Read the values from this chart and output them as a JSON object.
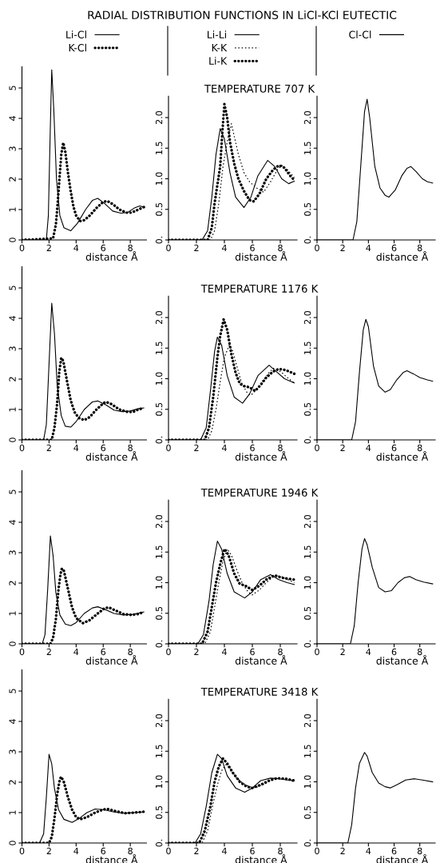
{
  "chart_data": [
    {
      "type": "line",
      "title": "RADIAL DISTRIBUTION FUNCTIONS IN LiCl-KCl EUTECTIC",
      "xlabel": "distance Å",
      "xlim": [
        0,
        9.2
      ],
      "xticks": [
        0,
        2,
        4,
        6,
        8
      ],
      "ylim": [
        0,
        5.7
      ],
      "yticks": [
        0,
        1,
        2,
        3,
        4,
        5
      ],
      "legend": "top",
      "series": [
        {
          "name": "Li-Cl",
          "color": "#000000",
          "x": [
            0,
            1.8,
            1.95,
            2.1,
            2.2,
            2.35,
            2.55,
            2.8,
            3.1,
            3.6,
            4.1,
            4.7,
            5.2,
            5.6,
            6.1,
            6.7,
            7.3,
            7.8,
            8.3,
            8.7,
            9.0
          ],
          "values": [
            0,
            0,
            0.8,
            3.8,
            5.6,
            4.3,
            2.0,
            0.8,
            0.4,
            0.3,
            0.55,
            1.0,
            1.3,
            1.37,
            1.2,
            0.95,
            0.88,
            0.9,
            1.05,
            1.12,
            1.08
          ]
        },
        {
          "name": "K-Cl",
          "line_style": "dotted",
          "color": "#000000",
          "x": [
            0,
            2.3,
            2.5,
            2.6,
            2.7,
            2.8,
            2.9,
            3.05,
            3.2,
            3.4,
            3.6,
            3.8,
            4.0,
            4.3,
            4.6,
            5.0,
            5.5,
            6.0,
            6.3,
            6.7,
            7.2,
            7.7,
            8.1,
            8.5,
            9.0
          ],
          "values": [
            0,
            0.05,
            0.5,
            1.0,
            1.6,
            2.2,
            2.8,
            3.2,
            2.9,
            2.2,
            1.6,
            1.1,
            0.8,
            0.62,
            0.65,
            0.8,
            1.05,
            1.25,
            1.28,
            1.18,
            1.0,
            0.9,
            0.9,
            0.98,
            1.08
          ]
        }
      ]
    },
    {
      "type": "line",
      "title": "TEMPERATURE 707 K",
      "xlabel": "distance Å",
      "xlim": [
        0,
        9.2
      ],
      "xticks": [
        0,
        2,
        4,
        6,
        8
      ],
      "ylim": [
        0,
        2.35
      ],
      "yticks": [
        {
          "value": 0,
          "label": "0."
        },
        0.5,
        {
          "value": 1,
          "label": "1.0"
        },
        1.5,
        {
          "value": 2,
          "label": "2.0"
        }
      ],
      "legend": "top",
      "series": [
        {
          "name": "Li-Li",
          "color": "#000000",
          "x": [
            0,
            2.4,
            2.8,
            3.1,
            3.4,
            3.7,
            4.0,
            4.4,
            4.8,
            5.4,
            5.9,
            6.4,
            7.1,
            7.6,
            8.1,
            8.6,
            9.0
          ],
          "values": [
            0,
            0,
            0.15,
            0.7,
            1.4,
            1.82,
            1.65,
            1.1,
            0.7,
            0.53,
            0.7,
            1.05,
            1.3,
            1.2,
            1.0,
            0.92,
            0.96
          ]
        },
        {
          "name": "K-K",
          "line_style": "dashed",
          "color": "#000000",
          "x": [
            0,
            3.0,
            3.3,
            3.6,
            3.9,
            4.2,
            4.5,
            4.7,
            5.0,
            5.4,
            5.8,
            6.3,
            6.8,
            7.3,
            7.8,
            8.1,
            8.5,
            9.0
          ],
          "values": [
            0,
            0,
            0.15,
            0.6,
            1.2,
            1.6,
            1.9,
            1.7,
            1.4,
            1.1,
            0.95,
            0.85,
            0.78,
            0.95,
            1.15,
            1.22,
            1.15,
            1.02
          ]
        },
        {
          "name": "Li-K",
          "line_style": "dotted",
          "color": "#000000",
          "x": [
            0,
            2.8,
            3.1,
            3.3,
            3.5,
            3.7,
            3.85,
            4.0,
            4.2,
            4.4,
            4.7,
            5.0,
            5.4,
            5.8,
            6.1,
            6.5,
            7.0,
            7.5,
            7.9,
            8.3,
            8.7,
            9.0
          ],
          "values": [
            0,
            0,
            0.2,
            0.6,
            0.9,
            1.2,
            1.75,
            2.22,
            2.0,
            1.6,
            1.25,
            1.0,
            0.8,
            0.65,
            0.63,
            0.75,
            1.0,
            1.15,
            1.22,
            1.18,
            1.05,
            0.98
          ]
        }
      ]
    },
    {
      "type": "line",
      "xlabel": "distance Å",
      "xlim": [
        0,
        9.2
      ],
      "xticks": [
        0,
        2,
        4,
        6,
        8
      ],
      "ylim": [
        0,
        2.35
      ],
      "yticks": [
        {
          "value": 0,
          "label": "0."
        },
        0.5,
        {
          "value": 1,
          "label": "1.0"
        },
        1.5,
        {
          "value": 2,
          "label": "2.0"
        }
      ],
      "legend": "top",
      "series": [
        {
          "name": "Cl-Cl",
          "color": "#000000",
          "x": [
            0,
            2.8,
            3.1,
            3.4,
            3.7,
            3.9,
            4.1,
            4.5,
            4.9,
            5.3,
            5.6,
            6.1,
            6.6,
            7.0,
            7.3,
            7.7,
            8.2,
            8.6,
            9.0
          ],
          "values": [
            0,
            0,
            0.3,
            1.2,
            2.1,
            2.3,
            2.0,
            1.2,
            0.85,
            0.73,
            0.7,
            0.82,
            1.05,
            1.17,
            1.2,
            1.12,
            1.0,
            0.95,
            0.93
          ]
        }
      ]
    },
    {
      "type": "line",
      "xlabel": "distance Å",
      "xlim": [
        0,
        9.2
      ],
      "xticks": [
        0,
        2,
        4,
        6,
        8
      ],
      "ylim": [
        0,
        5.7
      ],
      "yticks": [
        0,
        1,
        2,
        3,
        4,
        5
      ],
      "series": [
        {
          "color": "#000000",
          "x": [
            0,
            1.6,
            1.8,
            2.0,
            2.2,
            2.4,
            2.6,
            2.9,
            3.2,
            3.6,
            4.0,
            4.6,
            5.2,
            5.6,
            6.2,
            6.8,
            7.4,
            8.0,
            8.6,
            9.0
          ],
          "values": [
            0,
            0,
            0.5,
            2.5,
            4.5,
            3.5,
            1.8,
            0.8,
            0.45,
            0.42,
            0.6,
            1.0,
            1.25,
            1.28,
            1.15,
            0.98,
            0.93,
            0.95,
            1.03,
            1.05
          ]
        },
        {
          "line_style": "dotted",
          "color": "#000000",
          "x": [
            0,
            2.2,
            2.4,
            2.6,
            2.75,
            2.9,
            3.05,
            3.3,
            3.6,
            3.9,
            4.2,
            4.6,
            5.0,
            5.5,
            6.0,
            6.2,
            6.6,
            7.2,
            7.8,
            8.2,
            8.6,
            9.0
          ],
          "values": [
            0,
            0,
            0.4,
            1.2,
            2.2,
            2.7,
            2.6,
            2.0,
            1.3,
            0.9,
            0.72,
            0.65,
            0.75,
            1.0,
            1.2,
            1.25,
            1.18,
            1.0,
            0.92,
            0.92,
            1.0,
            1.05
          ]
        }
      ]
    },
    {
      "type": "line",
      "title": "TEMPERATURE 1176 K",
      "xlabel": "distance Å",
      "xlim": [
        0,
        9.2
      ],
      "xticks": [
        0,
        2,
        4,
        6,
        8
      ],
      "ylim": [
        0,
        2.35
      ],
      "yticks": [
        {
          "value": 0,
          "label": "0."
        },
        0.5,
        {
          "value": 1,
          "label": "1.0"
        },
        1.5,
        {
          "value": 2,
          "label": "2.0"
        }
      ],
      "series": [
        {
          "color": "#000000",
          "x": [
            0,
            2.3,
            2.7,
            3.0,
            3.3,
            3.5,
            3.8,
            4.2,
            4.7,
            5.3,
            5.8,
            6.4,
            7.2,
            7.7,
            8.3,
            9.0
          ],
          "values": [
            0,
            0,
            0.2,
            0.8,
            1.45,
            1.68,
            1.55,
            1.05,
            0.7,
            0.6,
            0.75,
            1.05,
            1.22,
            1.12,
            1.0,
            0.93
          ]
        },
        {
          "line_style": "dashed",
          "color": "#000000",
          "x": [
            0,
            2.8,
            3.1,
            3.4,
            3.7,
            4.0,
            4.35,
            4.6,
            4.9,
            5.2,
            5.6,
            5.9,
            6.3,
            6.8,
            7.2,
            7.5,
            8.0,
            8.5,
            9.0
          ],
          "values": [
            0,
            0,
            0.15,
            0.5,
            0.95,
            1.35,
            1.55,
            1.45,
            1.2,
            0.95,
            0.78,
            0.73,
            0.82,
            0.98,
            1.1,
            1.17,
            1.12,
            1.02,
            0.93
          ]
        },
        {
          "line_style": "dotted",
          "color": "#000000",
          "x": [
            0,
            2.6,
            2.9,
            3.2,
            3.5,
            3.7,
            3.95,
            4.2,
            4.5,
            4.8,
            5.1,
            5.4,
            5.8,
            6.2,
            6.6,
            7.0,
            7.5,
            7.9,
            8.4,
            9.0
          ],
          "values": [
            0,
            0,
            0.2,
            0.7,
            1.35,
            1.7,
            1.97,
            1.8,
            1.4,
            1.1,
            0.92,
            0.88,
            0.86,
            0.8,
            0.9,
            1.02,
            1.12,
            1.16,
            1.14,
            1.08
          ]
        }
      ]
    },
    {
      "type": "line",
      "xlabel": "distance Å",
      "xlim": [
        0,
        9.2
      ],
      "xticks": [
        0,
        2,
        4,
        6,
        8
      ],
      "ylim": [
        0,
        2.35
      ],
      "yticks": [
        {
          "value": 0,
          "label": "0."
        },
        0.5,
        {
          "value": 1,
          "label": "1.0"
        },
        1.5,
        {
          "value": 2,
          "label": "2.0"
        }
      ],
      "series": [
        {
          "color": "#000000",
          "x": [
            0,
            2.7,
            3.0,
            3.3,
            3.6,
            3.8,
            4.0,
            4.4,
            4.8,
            5.3,
            5.7,
            6.2,
            6.7,
            7.0,
            7.5,
            8.0,
            8.6,
            9.0
          ],
          "values": [
            0,
            0,
            0.3,
            1.1,
            1.8,
            1.97,
            1.85,
            1.2,
            0.88,
            0.78,
            0.82,
            0.98,
            1.1,
            1.13,
            1.08,
            1.02,
            0.98,
            0.96
          ]
        }
      ]
    },
    {
      "type": "line",
      "xlabel": "distance Å",
      "xlim": [
        0,
        9.2
      ],
      "xticks": [
        0,
        2,
        4,
        6,
        8
      ],
      "ylim": [
        0,
        5.7
      ],
      "yticks": [
        0,
        1,
        2,
        3,
        4,
        5
      ],
      "series": [
        {
          "color": "#000000",
          "x": [
            0,
            1.5,
            1.7,
            1.9,
            2.1,
            2.3,
            2.5,
            2.8,
            3.2,
            3.6,
            4.0,
            4.6,
            5.2,
            5.6,
            6.2,
            6.8,
            7.5,
            8.2,
            9.0
          ],
          "values": [
            0,
            0,
            0.3,
            1.8,
            3.55,
            2.9,
            1.7,
            0.95,
            0.65,
            0.6,
            0.7,
            1.0,
            1.18,
            1.22,
            1.12,
            1.0,
            0.95,
            0.97,
            1.05
          ]
        },
        {
          "line_style": "dotted",
          "color": "#000000",
          "x": [
            0,
            2.1,
            2.3,
            2.5,
            2.7,
            2.85,
            2.95,
            3.1,
            3.4,
            3.7,
            4.0,
            4.5,
            5.0,
            5.6,
            6.1,
            6.4,
            6.9,
            7.5,
            8.1,
            8.6,
            9.0
          ],
          "values": [
            0,
            0,
            0.2,
            0.8,
            1.8,
            2.3,
            2.48,
            2.4,
            1.8,
            1.2,
            0.85,
            0.68,
            0.78,
            1.0,
            1.17,
            1.2,
            1.1,
            0.98,
            0.95,
            0.98,
            1.05
          ]
        }
      ]
    },
    {
      "type": "line",
      "title": "TEMPERATURE 1946 K",
      "xlabel": "distance Å",
      "xlim": [
        0,
        9.2
      ],
      "xticks": [
        0,
        2,
        4,
        6,
        8
      ],
      "ylim": [
        0,
        2.35
      ],
      "yticks": [
        {
          "value": 0,
          "label": "0."
        },
        0.5,
        {
          "value": 1,
          "label": "1.0"
        },
        1.5,
        {
          "value": 2,
          "label": "2.0"
        }
      ],
      "series": [
        {
          "color": "#000000",
          "x": [
            0,
            2.1,
            2.5,
            2.9,
            3.2,
            3.5,
            3.8,
            4.2,
            4.7,
            5.45,
            6.0,
            6.6,
            7.3,
            7.9,
            8.5,
            9.0
          ],
          "values": [
            0,
            0,
            0.15,
            0.7,
            1.3,
            1.68,
            1.55,
            1.15,
            0.85,
            0.75,
            0.85,
            1.05,
            1.13,
            1.05,
            1.0,
            0.97
          ]
        },
        {
          "line_style": "dashed",
          "color": "#000000",
          "x": [
            0,
            2.6,
            3.0,
            3.3,
            3.6,
            3.9,
            4.2,
            4.5,
            4.9,
            5.3,
            5.7,
            6.0,
            6.5,
            7.0,
            7.6,
            8.1,
            9.0
          ],
          "values": [
            0,
            0,
            0.2,
            0.6,
            1.0,
            1.35,
            1.55,
            1.45,
            1.2,
            0.98,
            0.85,
            0.8,
            0.88,
            1.0,
            1.12,
            1.1,
            1.0
          ]
        },
        {
          "line_style": "dotted",
          "color": "#000000",
          "x": [
            0,
            2.4,
            2.8,
            3.1,
            3.4,
            3.7,
            4.0,
            4.3,
            4.7,
            5.1,
            5.5,
            6.0,
            6.5,
            7.0,
            7.6,
            8.1,
            9.0
          ],
          "values": [
            0,
            0,
            0.2,
            0.6,
            1.0,
            1.3,
            1.55,
            1.45,
            1.15,
            0.98,
            0.95,
            0.88,
            0.95,
            1.05,
            1.12,
            1.08,
            1.05
          ]
        }
      ]
    },
    {
      "type": "line",
      "xlabel": "distance Å",
      "xlim": [
        0,
        9.2
      ],
      "xticks": [
        0,
        2,
        4,
        6,
        8
      ],
      "ylim": [
        0,
        2.35
      ],
      "yticks": [
        {
          "value": 0,
          "label": "0."
        },
        0.5,
        {
          "value": 1,
          "label": "1.0"
        },
        1.5,
        {
          "value": 2,
          "label": "2.0"
        }
      ],
      "series": [
        {
          "color": "#000000",
          "x": [
            0,
            2.6,
            2.9,
            3.2,
            3.5,
            3.7,
            3.9,
            4.3,
            4.8,
            5.3,
            5.8,
            6.3,
            6.8,
            7.2,
            7.7,
            8.3,
            9.0
          ],
          "values": [
            0,
            0,
            0.3,
            1.0,
            1.55,
            1.72,
            1.62,
            1.25,
            0.92,
            0.85,
            0.87,
            1.0,
            1.08,
            1.1,
            1.05,
            1.01,
            0.98
          ]
        }
      ]
    },
    {
      "type": "line",
      "xlabel": "distance Å",
      "xlim": [
        0,
        9.2
      ],
      "xticks": [
        0,
        2,
        4,
        6,
        8
      ],
      "ylim": [
        0,
        5.7
      ],
      "yticks": [
        0,
        1,
        2,
        3,
        4,
        5
      ],
      "series": [
        {
          "color": "#000000",
          "x": [
            0,
            1.3,
            1.6,
            1.8,
            2.0,
            2.2,
            2.4,
            2.7,
            3.1,
            3.7,
            4.2,
            4.8,
            5.4,
            6.0,
            6.8,
            7.5,
            8.2,
            9.0
          ],
          "values": [
            0,
            0,
            0.3,
            1.5,
            2.92,
            2.6,
            1.8,
            1.1,
            0.78,
            0.68,
            0.8,
            1.0,
            1.12,
            1.1,
            1.02,
            0.98,
            1.0,
            1.02
          ]
        },
        {
          "line_style": "dotted",
          "color": "#000000",
          "x": [
            0,
            2.0,
            2.2,
            2.4,
            2.6,
            2.8,
            2.9,
            3.1,
            3.4,
            3.7,
            4.0,
            4.3,
            4.8,
            5.4,
            6.0,
            6.3,
            6.9,
            7.6,
            8.3,
            9.0
          ],
          "values": [
            0,
            0,
            0.2,
            0.8,
            1.6,
            2.1,
            2.18,
            2.0,
            1.5,
            1.1,
            0.85,
            0.78,
            0.85,
            1.0,
            1.1,
            1.12,
            1.05,
            0.98,
            1.0,
            1.03
          ]
        }
      ]
    },
    {
      "type": "line",
      "title": "TEMPERATURE 3418 K",
      "xlabel": "distance Å",
      "xlim": [
        0,
        9.2
      ],
      "xticks": [
        0,
        2,
        4,
        6,
        8
      ],
      "ylim": [
        0,
        2.35
      ],
      "yticks": [
        {
          "value": 0,
          "label": "0."
        },
        0.5,
        {
          "value": 1,
          "label": "1.0"
        },
        1.5,
        {
          "value": 2,
          "label": "2.0"
        }
      ],
      "series": [
        {
          "color": "#000000",
          "x": [
            0,
            1.9,
            2.3,
            2.7,
            3.1,
            3.5,
            3.8,
            4.2,
            4.8,
            5.45,
            6.0,
            6.6,
            7.3,
            7.9,
            8.5,
            9.0
          ],
          "values": [
            0,
            0,
            0.15,
            0.6,
            1.15,
            1.45,
            1.38,
            1.1,
            0.9,
            0.83,
            0.9,
            1.02,
            1.06,
            1.05,
            1.03,
            1.02
          ]
        },
        {
          "line_style": "dashed",
          "color": "#000000",
          "x": [
            0,
            2.4,
            2.8,
            3.1,
            3.5,
            3.8,
            4.1,
            4.4,
            4.8,
            5.3,
            5.8,
            6.2,
            6.8,
            7.4,
            8.0,
            8.5,
            9.0
          ],
          "values": [
            0,
            0,
            0.2,
            0.55,
            0.95,
            1.18,
            1.28,
            1.22,
            1.08,
            0.98,
            0.92,
            0.9,
            0.96,
            1.03,
            1.06,
            1.04,
            1.0
          ]
        },
        {
          "line_style": "dotted",
          "color": "#000000",
          "x": [
            0,
            2.2,
            2.6,
            3.0,
            3.3,
            3.6,
            3.9,
            4.2,
            4.6,
            5.1,
            5.6,
            6.0,
            6.6,
            7.2,
            7.8,
            8.4,
            9.0
          ],
          "values": [
            0,
            0,
            0.2,
            0.6,
            1.0,
            1.25,
            1.38,
            1.3,
            1.15,
            1.0,
            0.92,
            0.9,
            0.95,
            1.02,
            1.06,
            1.05,
            1.02
          ]
        }
      ]
    },
    {
      "type": "line",
      "xlabel": "distance Å",
      "xlim": [
        0,
        9.2
      ],
      "xticks": [
        0,
        2,
        4,
        6,
        8
      ],
      "ylim": [
        0,
        2.35
      ],
      "yticks": [
        {
          "value": 0,
          "label": "0."
        },
        0.5,
        {
          "value": 1,
          "label": "1.0"
        },
        1.5,
        {
          "value": 2,
          "label": "2.0"
        }
      ],
      "series": [
        {
          "color": "#000000",
          "x": [
            0,
            2.4,
            2.7,
            3.0,
            3.3,
            3.7,
            3.9,
            4.3,
            4.8,
            5.3,
            5.7,
            6.3,
            6.9,
            7.6,
            8.2,
            9.0
          ],
          "values": [
            0,
            0,
            0.3,
            0.9,
            1.3,
            1.48,
            1.42,
            1.15,
            0.98,
            0.92,
            0.9,
            0.96,
            1.03,
            1.05,
            1.03,
            1.0
          ]
        }
      ]
    }
  ]
}
